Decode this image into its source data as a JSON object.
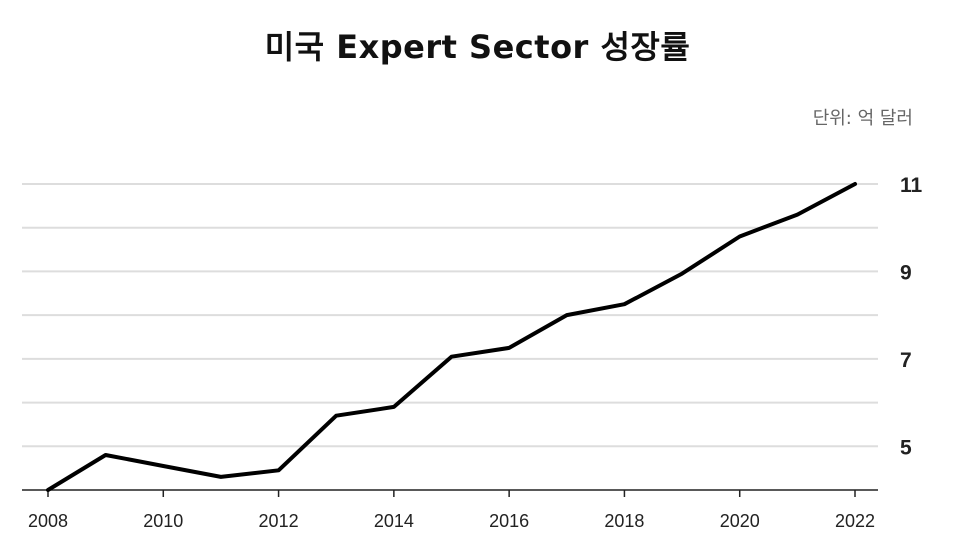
{
  "chart_data": {
    "type": "line",
    "title": "미국 Expert Sector 성장률",
    "unit_label": "단위: 억 달러",
    "xlabel": "",
    "ylabel": "",
    "x": [
      2008,
      2009,
      2010,
      2011,
      2012,
      2013,
      2014,
      2015,
      2016,
      2017,
      2018,
      2019,
      2020,
      2021,
      2022
    ],
    "series": [
      {
        "values": [
          4.0,
          4.8,
          4.55,
          4.3,
          4.45,
          5.7,
          5.9,
          7.05,
          7.25,
          8.0,
          8.25,
          8.95,
          9.8,
          10.3,
          11.0
        ],
        "color": "#000000"
      }
    ],
    "xlim": [
      2008,
      2022
    ],
    "ylim": [
      4,
      11
    ],
    "x_ticks": [
      "2008",
      "2010",
      "2012",
      "2014",
      "2016",
      "2018",
      "2020",
      "2022"
    ],
    "y_ticks": [
      "5",
      "7",
      "9",
      "11"
    ],
    "y_gridlines": [
      5,
      6,
      7,
      8,
      9,
      10,
      11
    ],
    "grid": true,
    "y_axis_position": "right",
    "legend": "none",
    "colors": {
      "line": "#000000",
      "grid": "#dddddd",
      "axis": "#222222"
    }
  }
}
